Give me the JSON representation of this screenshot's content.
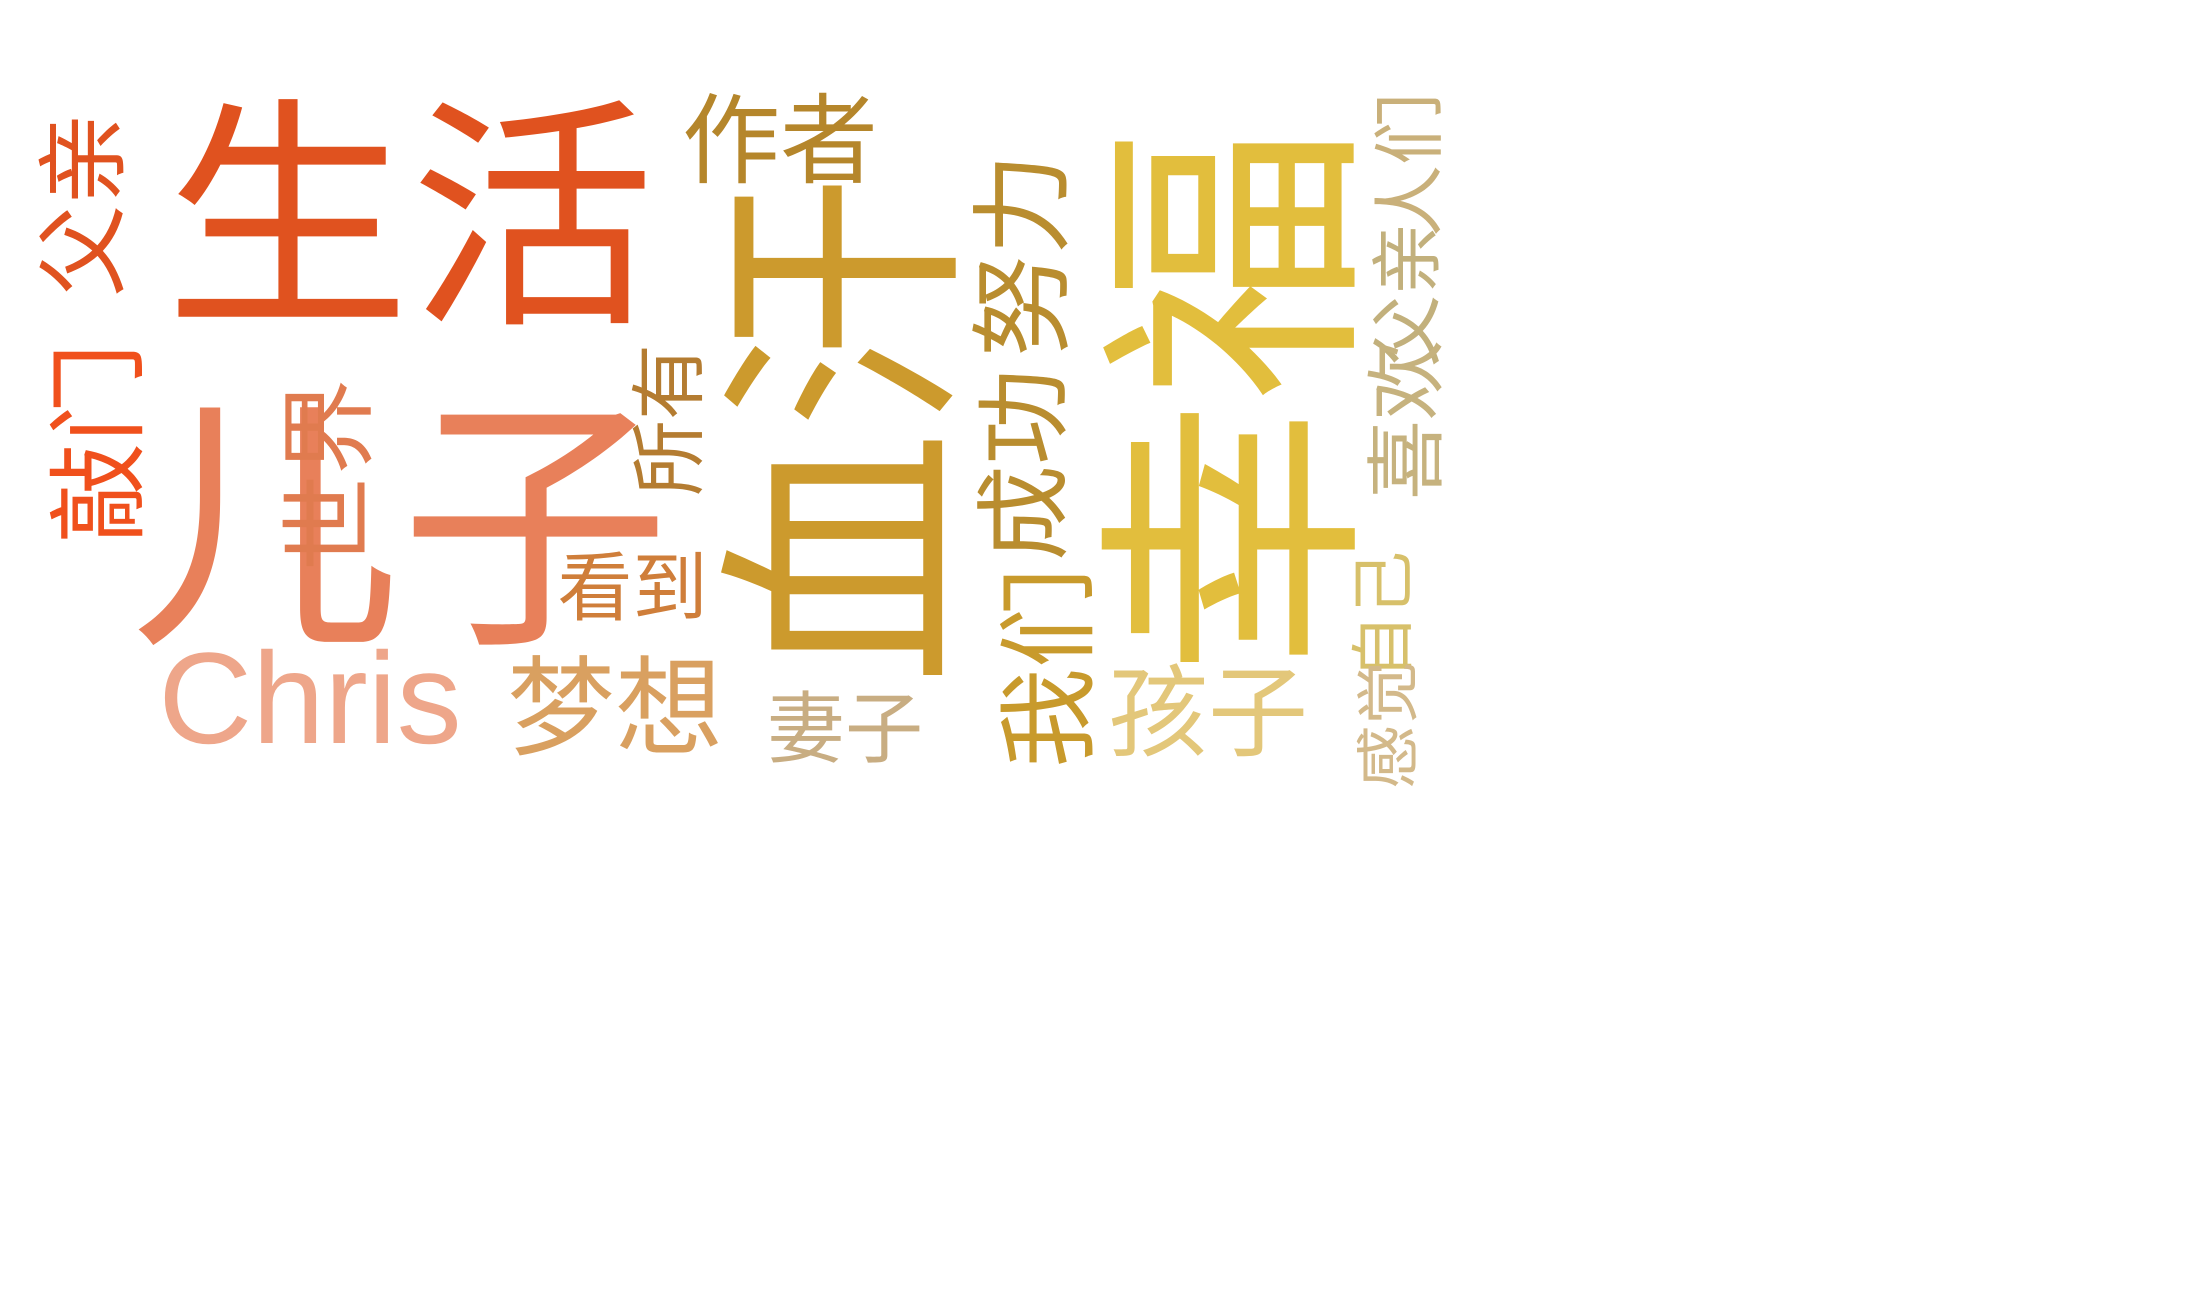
{
  "words": [
    {
      "text": "生活",
      "color": "#e0521f",
      "orientation": "horizontal"
    },
    {
      "text": "儿子",
      "color": "#e8805a",
      "orientation": "horizontal"
    },
    {
      "text": "Chris",
      "color": "#eea68a",
      "orientation": "horizontal"
    },
    {
      "text": "梦想",
      "color": "#d9a060",
      "orientation": "horizontal"
    },
    {
      "text": "看到",
      "color": "#cf7e3a",
      "orientation": "horizontal"
    },
    {
      "text": "作者",
      "color": "#b5862b",
      "orientation": "horizontal"
    },
    {
      "text": "妻子",
      "color": "#c8ad82",
      "orientation": "horizontal"
    },
    {
      "text": "孩子",
      "color": "#e3c77a",
      "orientation": "horizontal"
    },
    {
      "text": "父亲",
      "color": "#e0521f",
      "orientation": "vertical"
    },
    {
      "text": "敲门",
      "color": "#f0501c",
      "orientation": "vertical"
    },
    {
      "text": "世界",
      "color": "#e07b4f",
      "orientation": "vertical"
    },
    {
      "text": "所有",
      "color": "#b47c31",
      "orientation": "vertical"
    },
    {
      "text": "血汗",
      "color": "#cc9a2d",
      "orientation": "vertical"
    },
    {
      "text": "努力",
      "color": "#b98d2f",
      "orientation": "vertical"
    },
    {
      "text": "成功",
      "color": "#b98d2f",
      "orientation": "vertical"
    },
    {
      "text": "我们",
      "color": "#c89a2c",
      "orientation": "vertical"
    },
    {
      "text": "我",
      "color": "#c89a2c",
      "orientation": "horizontal"
    },
    {
      "text": "幸福",
      "color": "#e2be3d",
      "orientation": "vertical"
    },
    {
      "text": "人们",
      "color": "#c9b07a",
      "orientation": "vertical"
    },
    {
      "text": "父亲",
      "color": "#c2b07c",
      "orientation": "vertical"
    },
    {
      "text": "喜欢",
      "color": "#c6b27e",
      "orientation": "vertical"
    },
    {
      "text": "自己",
      "color": "#d7c06a",
      "orientation": "vertical"
    },
    {
      "text": "感觉",
      "color": "#d3b98a",
      "orientation": "vertical"
    }
  ]
}
